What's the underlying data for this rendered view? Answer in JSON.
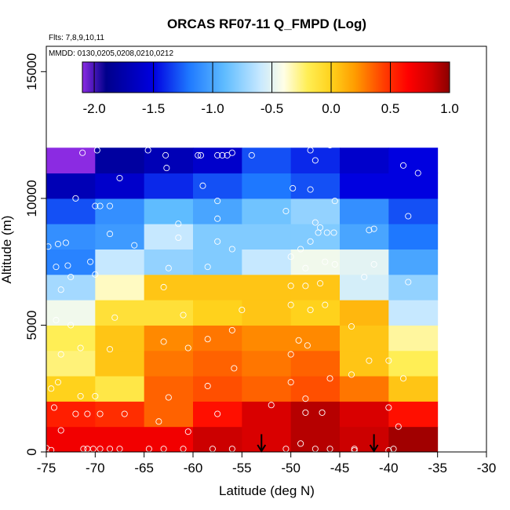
{
  "chart_data": {
    "type": "heatmap",
    "title": "ORCAS RF07-11 Q_FMPD (Log)",
    "annotations": {
      "flights": "Flts: 7,8,9,10,11",
      "dates": "MMDD: 0130,0205,0208,0210,0212"
    },
    "xlabel": "Latitude (deg N)",
    "ylabel": "Altitude (m)",
    "xlim": [
      -75,
      -30
    ],
    "ylim": [
      0,
      16000
    ],
    "x_ticks": [
      -75,
      -70,
      -65,
      -60,
      -55,
      -50,
      -45,
      -40,
      -35,
      -30
    ],
    "x_tick_labels": [
      "-75",
      "-70",
      "-65",
      "-60",
      "-55",
      "-50",
      "-45",
      "-40",
      "-35",
      "-30"
    ],
    "y_ticks": [
      0,
      5000,
      10000,
      15000
    ],
    "y_tick_labels": [
      "0",
      "5000",
      "10000",
      "15000"
    ],
    "colorbar": {
      "min": -2.1,
      "max": 1.0,
      "ticks": [
        -2.0,
        -1.5,
        -1.0,
        -0.5,
        0.0,
        0.5,
        1.0
      ],
      "tick_labels": [
        "-2.0",
        "-1.5",
        "-1.0",
        "-0.5",
        "0.0",
        "0.5",
        "1.0"
      ],
      "stops": [
        {
          "v": -2.1,
          "c": "#8b2be2"
        },
        {
          "v": -1.9,
          "c": "#00008b"
        },
        {
          "v": -1.5,
          "c": "#0000e0"
        },
        {
          "v": -1.2,
          "c": "#1e78ff"
        },
        {
          "v": -0.9,
          "c": "#5fbcff"
        },
        {
          "v": -0.6,
          "c": "#c6e8ff"
        },
        {
          "v": -0.4,
          "c": "#fffee6"
        },
        {
          "v": -0.2,
          "c": "#ffee55"
        },
        {
          "v": 0.0,
          "c": "#ffd21c"
        },
        {
          "v": 0.2,
          "c": "#ff9c00"
        },
        {
          "v": 0.45,
          "c": "#ff3c00"
        },
        {
          "v": 0.65,
          "c": "#ff0000"
        },
        {
          "v": 0.85,
          "c": "#cc0000"
        },
        {
          "v": 1.0,
          "c": "#8b0000"
        }
      ]
    },
    "lat_bins": [
      -75,
      -70,
      -65,
      -60,
      -55,
      -50,
      -45,
      -40,
      -35
    ],
    "alt_bins": [
      0,
      1000,
      2000,
      3000,
      4000,
      5000,
      6000,
      7000,
      8000,
      9000,
      10000,
      11000,
      12000
    ],
    "grid_values": [
      [
        0.7,
        0.7,
        0.7,
        0.85,
        0.8,
        0.9,
        0.85,
        0.95
      ],
      [
        0.55,
        0.5,
        0.35,
        0.6,
        0.8,
        0.9,
        0.8,
        0.6
      ],
      [
        0.0,
        -0.15,
        0.35,
        0.4,
        0.35,
        0.4,
        0.3,
        0.05
      ],
      [
        -0.25,
        0.05,
        0.3,
        0.35,
        0.3,
        0.35,
        0.05,
        -0.2
      ],
      [
        -0.2,
        0.05,
        0.25,
        0.3,
        0.25,
        0.25,
        0.05,
        -0.3
      ],
      [
        -0.45,
        -0.1,
        -0.1,
        0.0,
        0.05,
        0.0,
        0.1,
        -0.6
      ],
      [
        -0.7,
        -0.35,
        0.05,
        0.05,
        0.05,
        0.05,
        -0.55,
        -0.75
      ],
      [
        -1.15,
        -0.6,
        -0.75,
        -0.8,
        -0.6,
        -0.45,
        -0.5,
        -1.0
      ],
      [
        -1.1,
        -1.05,
        -0.6,
        -0.8,
        -0.8,
        -0.8,
        -1.0,
        -1.2
      ],
      [
        -1.3,
        -1.1,
        -0.9,
        -1.0,
        -0.85,
        -0.75,
        -1.1,
        -1.3
      ],
      [
        -1.7,
        -1.6,
        -1.4,
        -1.3,
        -1.2,
        -1.3,
        -1.5,
        -1.5
      ],
      [
        -2.1,
        -1.8,
        -1.7,
        -1.6,
        -1.3,
        -1.4,
        -1.6,
        -1.5
      ]
    ],
    "sample_points": [
      [
        -75,
        150
      ],
      [
        -74.5,
        70
      ],
      [
        -73.5,
        850
      ],
      [
        -71.2,
        120
      ],
      [
        -70.8,
        120
      ],
      [
        -70.2,
        120
      ],
      [
        -69.5,
        120
      ],
      [
        -68.5,
        120
      ],
      [
        -67.5,
        120
      ],
      [
        -64.5,
        120
      ],
      [
        -63,
        120
      ],
      [
        -61,
        120
      ],
      [
        -58,
        120
      ],
      [
        -56,
        120
      ],
      [
        -50.5,
        120
      ],
      [
        -47.5,
        120
      ],
      [
        -46,
        120
      ],
      [
        -43.5,
        120
      ],
      [
        -43.5,
        60
      ],
      [
        -40,
        60
      ],
      [
        -39.5,
        120
      ],
      [
        -49,
        330
      ],
      [
        -60.5,
        800
      ],
      [
        -39,
        1000
      ],
      [
        -74.2,
        1750
      ],
      [
        -72,
        1500
      ],
      [
        -70.8,
        1500
      ],
      [
        -69.5,
        1500
      ],
      [
        -67,
        1500
      ],
      [
        -63.5,
        1200
      ],
      [
        -57.5,
        1500
      ],
      [
        -52,
        1850
      ],
      [
        -48.5,
        1550
      ],
      [
        -46.8,
        1550
      ],
      [
        -40,
        1750
      ],
      [
        -74.5,
        2500
      ],
      [
        -73.8,
        2750
      ],
      [
        -71.5,
        2200
      ],
      [
        -70,
        2200
      ],
      [
        -62.5,
        2150
      ],
      [
        -58.5,
        2600
      ],
      [
        -55.8,
        3300
      ],
      [
        -50,
        2750
      ],
      [
        -48.5,
        2100
      ],
      [
        -46,
        2900
      ],
      [
        -43.8,
        3050
      ],
      [
        -38.5,
        2900
      ],
      [
        -40,
        3600
      ],
      [
        -73.5,
        3850
      ],
      [
        -71.5,
        4100
      ],
      [
        -68.5,
        4050
      ],
      [
        -63,
        4350
      ],
      [
        -60.5,
        4100
      ],
      [
        -58.5,
        4450
      ],
      [
        -56,
        4800
      ],
      [
        -50,
        3850
      ],
      [
        -49.2,
        4400
      ],
      [
        -48.3,
        4200
      ],
      [
        -42,
        3600
      ],
      [
        -74,
        5200
      ],
      [
        -72.5,
        5000
      ],
      [
        -68,
        5300
      ],
      [
        -61,
        5400
      ],
      [
        -55,
        5600
      ],
      [
        -50,
        5800
      ],
      [
        -48,
        5600
      ],
      [
        -43.8,
        4950
      ],
      [
        -46.5,
        5800
      ],
      [
        -73.5,
        6400
      ],
      [
        -72.5,
        6900
      ],
      [
        -70,
        7000
      ],
      [
        -63,
        6500
      ],
      [
        -50,
        6550
      ],
      [
        -48.5,
        6550
      ],
      [
        -47,
        6650
      ],
      [
        -42.5,
        6900
      ],
      [
        -38,
        6700
      ],
      [
        -74,
        7300
      ],
      [
        -72.8,
        7350
      ],
      [
        -70.5,
        7500
      ],
      [
        -62.5,
        7250
      ],
      [
        -58.5,
        7300
      ],
      [
        -50,
        7700
      ],
      [
        -48.5,
        7250
      ],
      [
        -46.5,
        7500
      ],
      [
        -45.5,
        7400
      ],
      [
        -41.5,
        7400
      ],
      [
        -74.8,
        8100
      ],
      [
        -73.8,
        8200
      ],
      [
        -73,
        8250
      ],
      [
        -68.5,
        8600
      ],
      [
        -66,
        8150
      ],
      [
        -61.5,
        8450
      ],
      [
        -57.5,
        8300
      ],
      [
        -56,
        8000
      ],
      [
        -49,
        8000
      ],
      [
        -48,
        8300
      ],
      [
        -47.2,
        8650
      ],
      [
        -46.3,
        8650
      ],
      [
        -45.6,
        8650
      ],
      [
        -42,
        8750
      ],
      [
        -41.5,
        8800
      ],
      [
        -70,
        9700
      ],
      [
        -69.5,
        9700
      ],
      [
        -68.5,
        9700
      ],
      [
        -61.5,
        9000
      ],
      [
        -57.5,
        9200
      ],
      [
        -50.5,
        9500
      ],
      [
        -47.5,
        9050
      ],
      [
        -47,
        8850
      ],
      [
        -38,
        9300
      ],
      [
        -72,
        10000
      ],
      [
        -67.5,
        10800
      ],
      [
        -59,
        10500
      ],
      [
        -57.5,
        9900
      ],
      [
        -49.8,
        10400
      ],
      [
        -48,
        10350
      ],
      [
        -37,
        11000
      ],
      [
        -45.5,
        9900
      ],
      [
        -71.3,
        11800
      ],
      [
        -69.8,
        11900
      ],
      [
        -64.6,
        11900
      ],
      [
        -62.7,
        11200
      ],
      [
        -62.8,
        11700
      ],
      [
        -59.5,
        11700
      ],
      [
        -59.2,
        11700
      ],
      [
        -57.5,
        11700
      ],
      [
        -57,
        11700
      ],
      [
        -56.5,
        11700
      ],
      [
        -56,
        11800
      ],
      [
        -54,
        11700
      ],
      [
        -48,
        11900
      ],
      [
        -47.5,
        11500
      ],
      [
        -46,
        12100
      ],
      [
        -38.5,
        11300
      ]
    ],
    "arrows": [
      {
        "lat": -53,
        "alt_top": 700,
        "alt_bottom": 0
      },
      {
        "lat": -41.5,
        "alt_top": 700,
        "alt_bottom": 0
      }
    ]
  }
}
